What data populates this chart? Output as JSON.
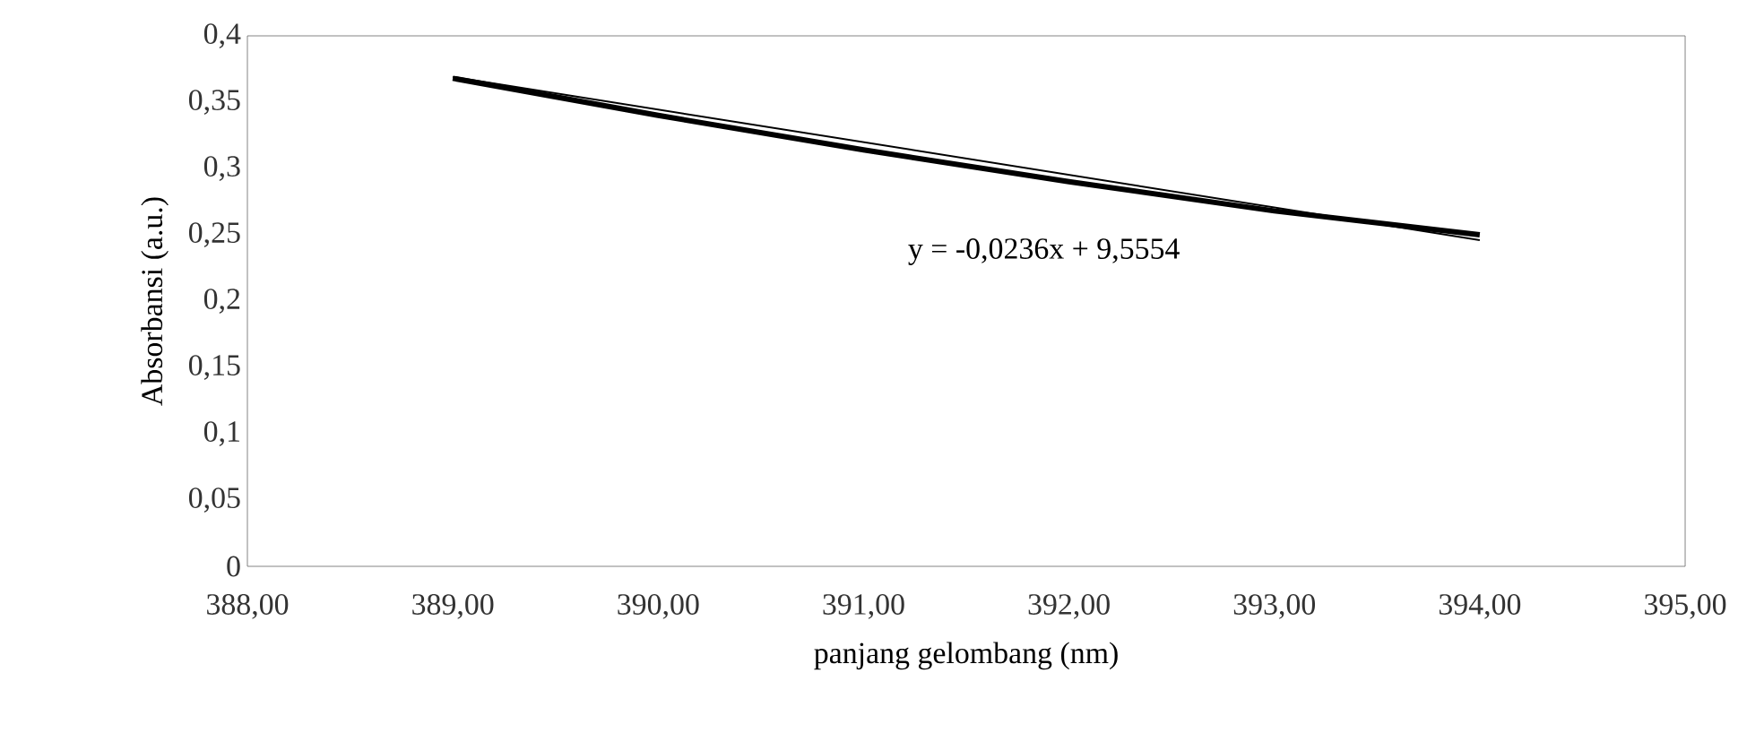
{
  "chart_data": {
    "type": "line",
    "xlabel": "panjang gelombang (nm)",
    "ylabel": "Absorbansi (a.u.)",
    "x": [
      389,
      390,
      391,
      392,
      393,
      394
    ],
    "series": [
      {
        "color": "#000000",
        "values": [
          0.368,
          0.34,
          0.314,
          0.29,
          0.268,
          0.25
        ]
      },
      {
        "color": "#000000",
        "x": [
          389,
          394
        ],
        "values": [
          0.369,
          0.246
        ],
        "line_style": "solid"
      }
    ],
    "xlim": [
      388,
      395
    ],
    "xticks": [
      {
        "value": 388,
        "label": "388,00"
      },
      {
        "value": 389,
        "label": "389,00"
      },
      {
        "value": 390,
        "label": "390,00"
      },
      {
        "value": 391,
        "label": "391,00"
      },
      {
        "value": 392,
        "label": "392,00"
      },
      {
        "value": 393,
        "label": "393,00"
      },
      {
        "value": 394,
        "label": "394,00"
      },
      {
        "value": 395,
        "label": "395,00"
      }
    ],
    "ylim": [
      0,
      0.4
    ],
    "yticks": [
      0,
      {
        "value": 0.05,
        "label": "0,05"
      },
      {
        "value": 0.1,
        "label": "0,1"
      },
      {
        "value": 0.15,
        "label": "0,15"
      },
      {
        "value": 0.2,
        "label": "0,2"
      },
      {
        "value": 0.25,
        "label": "0,25"
      },
      {
        "value": 0.3,
        "label": "0,3"
      },
      {
        "value": 0.35,
        "label": "0,35"
      },
      {
        "value": 0.4,
        "label": "0,4"
      }
    ],
    "annotations": [
      "y = -0,0236x + 9,5554"
    ],
    "grid": false
  }
}
